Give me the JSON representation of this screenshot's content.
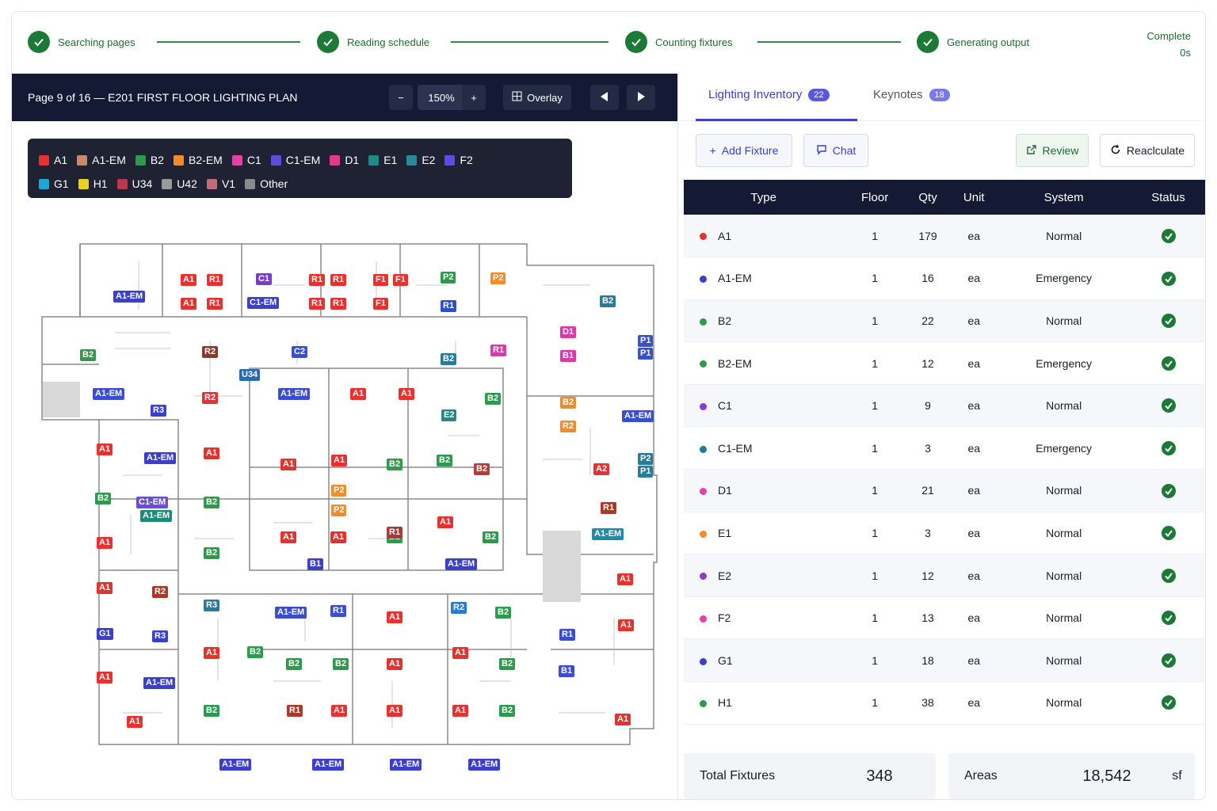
{
  "steps": [
    {
      "label": "Searching pages"
    },
    {
      "label": "Reading schedule"
    },
    {
      "label": "Counting fixtures"
    },
    {
      "label": "Generating output"
    }
  ],
  "status": {
    "label": "Complete",
    "time": "0s"
  },
  "viewer": {
    "page_title": "Page 9 of 16 — E201 FIRST FLOOR LIGHTING PLAN",
    "zoom": "150%",
    "zoom_out": "−",
    "zoom_in": "+",
    "overlay": "Overlay"
  },
  "legend": [
    [
      {
        "code": "A1",
        "color": "#e5322f"
      },
      {
        "code": "A1-EM",
        "color": "#c98a6b"
      },
      {
        "code": "B2",
        "color": "#2e9a4c"
      },
      {
        "code": "B2-EM",
        "color": "#f08c2c"
      },
      {
        "code": "C1",
        "color": "#e83ea8"
      },
      {
        "code": "C1-EM",
        "color": "#5a4ed8"
      },
      {
        "code": "D1",
        "color": "#e03a8c"
      },
      {
        "code": "E1",
        "color": "#1f8a8a"
      },
      {
        "code": "E2",
        "color": "#2a8a9a"
      },
      {
        "code": "F2",
        "color": "#5a4ee0"
      }
    ],
    [
      {
        "code": "G1",
        "color": "#1aa8d8"
      },
      {
        "code": "H1",
        "color": "#e8d21e"
      },
      {
        "code": "U34",
        "color": "#b83a4a"
      },
      {
        "code": "U42",
        "color": "#9a9a9a"
      },
      {
        "code": "V1",
        "color": "#c46a7a"
      },
      {
        "code": "Other",
        "color": "#8a8a8a"
      }
    ]
  ],
  "plan_tags": [
    {
      "t": "A1-EM",
      "c": "#3a3fd0"
    },
    {
      "t": "A1",
      "c": "#e5322f"
    },
    {
      "t": "R1",
      "c": "#e5322f"
    },
    {
      "t": "C1",
      "c": "#7a3ad0"
    },
    {
      "t": "R1",
      "c": "#e5322f"
    },
    {
      "t": "R1",
      "c": "#e5322f"
    },
    {
      "t": "F1",
      "c": "#e5322f"
    },
    {
      "t": "F1",
      "c": "#e5322f"
    },
    {
      "t": "P2",
      "c": "#2e9a4c"
    },
    {
      "t": "P2",
      "c": "#f08c2c"
    },
    {
      "t": "A1",
      "c": "#e5322f"
    },
    {
      "t": "R1",
      "c": "#e5322f"
    },
    {
      "t": "C1-EM",
      "c": "#3a3fd0"
    },
    {
      "t": "R1",
      "c": "#e5322f"
    },
    {
      "t": "R1",
      "c": "#e5322f"
    },
    {
      "t": "F1",
      "c": "#e5322f"
    },
    {
      "t": "R1",
      "c": "#2a4fd0"
    },
    {
      "t": "B2",
      "c": "#2a7a9a"
    },
    {
      "t": "B2",
      "c": "#2e9a4c"
    },
    {
      "t": "R2",
      "c": "#8a3a2a"
    },
    {
      "t": "C2",
      "c": "#3a4fd0"
    },
    {
      "t": "U34",
      "c": "#2a6ab0"
    },
    {
      "t": "B2",
      "c": "#2a7a9a"
    },
    {
      "t": "R1",
      "c": "#d83aa8"
    },
    {
      "t": "D1",
      "c": "#d83aa8"
    },
    {
      "t": "B1",
      "c": "#d83aa8"
    },
    {
      "t": "P1",
      "c": "#3a4fd0"
    },
    {
      "t": "P1",
      "c": "#3a4fd0"
    },
    {
      "t": "A1-EM",
      "c": "#3a4fd0"
    },
    {
      "t": "R3",
      "c": "#3a3fd0"
    },
    {
      "t": "R2",
      "c": "#e5322f"
    },
    {
      "t": "A1-EM",
      "c": "#3a4fd0"
    },
    {
      "t": "A1",
      "c": "#e5322f"
    },
    {
      "t": "A1",
      "c": "#e5322f"
    },
    {
      "t": "B2",
      "c": "#2e9a4c"
    },
    {
      "t": "E2",
      "c": "#1f8a8a"
    },
    {
      "t": "B2",
      "c": "#f08c2c"
    },
    {
      "t": "R2",
      "c": "#f08c2c"
    },
    {
      "t": "A1-EM",
      "c": "#3a4fd0"
    },
    {
      "t": "A1",
      "c": "#e5322f"
    },
    {
      "t": "A1-EM",
      "c": "#3a3fd0"
    },
    {
      "t": "A1",
      "c": "#e5322f"
    },
    {
      "t": "A1",
      "c": "#e5322f"
    },
    {
      "t": "B2",
      "c": "#2e9a4c"
    },
    {
      "t": "A1",
      "c": "#e5322f"
    },
    {
      "t": "B2",
      "c": "#2e9a4c"
    },
    {
      "t": "B2",
      "c": "#b83a3a"
    },
    {
      "t": "A2",
      "c": "#e5322f"
    },
    {
      "t": "P2",
      "c": "#2a7a9a"
    },
    {
      "t": "P1",
      "c": "#2a7a9a"
    },
    {
      "t": "B2",
      "c": "#2e9a4c"
    },
    {
      "t": "C1-EM",
      "c": "#6a4ed8"
    },
    {
      "t": "A1-EM",
      "c": "#1f8a7a"
    },
    {
      "t": "B2",
      "c": "#2e9a4c"
    },
    {
      "t": "P2",
      "c": "#f08c2c"
    },
    {
      "t": "P2",
      "c": "#f08c2c"
    },
    {
      "t": "R1",
      "c": "#a83a2a"
    },
    {
      "t": "A1",
      "c": "#e5322f"
    },
    {
      "t": "A1",
      "c": "#e5322f"
    },
    {
      "t": "B2",
      "c": "#2e9a4c"
    },
    {
      "t": "R1",
      "c": "#a83a3a"
    },
    {
      "t": "A1",
      "c": "#e5322f"
    },
    {
      "t": "B2",
      "c": "#2e9a4c"
    },
    {
      "t": "A1-EM",
      "c": "#1f8ab0"
    },
    {
      "t": "B2",
      "c": "#2e9a4c"
    },
    {
      "t": "B1",
      "c": "#3a3fd0"
    },
    {
      "t": "A1-EM",
      "c": "#3a3fd0"
    },
    {
      "t": "A1",
      "c": "#e5322f"
    },
    {
      "t": "A1",
      "c": "#e5322f"
    },
    {
      "t": "R2",
      "c": "#a83a2a"
    },
    {
      "t": "R3",
      "c": "#2a7a9a"
    },
    {
      "t": "A1-EM",
      "c": "#3a4fd0"
    },
    {
      "t": "R1",
      "c": "#3a4fd0"
    },
    {
      "t": "A1",
      "c": "#e5322f"
    },
    {
      "t": "R2",
      "c": "#2a7ad0"
    },
    {
      "t": "B2",
      "c": "#2e9a4c"
    },
    {
      "t": "A1",
      "c": "#e5322f"
    },
    {
      "t": "R1",
      "c": "#3a4fd0"
    },
    {
      "t": "G1",
      "c": "#3a3fd0"
    },
    {
      "t": "R3",
      "c": "#3a3fd0"
    },
    {
      "t": "A1",
      "c": "#e5322f"
    },
    {
      "t": "B2",
      "c": "#2e9a4c"
    },
    {
      "t": "B2",
      "c": "#2e9a4c"
    },
    {
      "t": "B2",
      "c": "#2e9a4c"
    },
    {
      "t": "A1",
      "c": "#e5322f"
    },
    {
      "t": "A1",
      "c": "#e5322f"
    },
    {
      "t": "B2",
      "c": "#2e9a4c"
    },
    {
      "t": "B1",
      "c": "#3a4fd0"
    },
    {
      "t": "A1",
      "c": "#e5322f"
    },
    {
      "t": "A1",
      "c": "#e5322f"
    },
    {
      "t": "A1-EM",
      "c": "#3a3fd0"
    },
    {
      "t": "B2",
      "c": "#2e9a4c"
    },
    {
      "t": "R1",
      "c": "#a83a2a"
    },
    {
      "t": "A1",
      "c": "#e5322f"
    },
    {
      "t": "A1",
      "c": "#e5322f"
    },
    {
      "t": "A1",
      "c": "#e5322f"
    },
    {
      "t": "B2",
      "c": "#2e9a4c"
    },
    {
      "t": "A1",
      "c": "#e5322f"
    },
    {
      "t": "A1",
      "c": "#e5322f"
    },
    {
      "t": "A1-EM",
      "c": "#3a3fd0"
    },
    {
      "t": "A1-EM",
      "c": "#3a3fd0"
    },
    {
      "t": "A1-EM",
      "c": "#3a3fd0"
    },
    {
      "t": "A1-EM",
      "c": "#3a3fd0"
    }
  ],
  "tabs": {
    "inventory": "Lighting Inventory",
    "inventory_count": "22",
    "keynotes": "Keynotes",
    "keynotes_count": "18"
  },
  "actions": {
    "add": "Add Fixture",
    "chat": "Chat",
    "review": "Review",
    "recalc": "Reaclculate"
  },
  "table": {
    "headers": [
      "Type",
      "Floor",
      "Qty",
      "Unit",
      "System",
      "Status"
    ],
    "rows": [
      {
        "type": "A1",
        "color": "#e5322f",
        "floor": "1",
        "qty": "179",
        "unit": "ea",
        "system": "Normal"
      },
      {
        "type": "A1-EM",
        "color": "#3a3fd0",
        "floor": "1",
        "qty": "16",
        "unit": "ea",
        "system": "Emergency"
      },
      {
        "type": "B2",
        "color": "#2e9a4c",
        "floor": "1",
        "qty": "22",
        "unit": "ea",
        "system": "Normal"
      },
      {
        "type": "B2-EM",
        "color": "#2e9a4c",
        "floor": "1",
        "qty": "12",
        "unit": "ea",
        "system": "Emergency"
      },
      {
        "type": "C1",
        "color": "#8a3ad8",
        "floor": "1",
        "qty": "9",
        "unit": "ea",
        "system": "Normal"
      },
      {
        "type": "C1-EM",
        "color": "#1f7a9a",
        "floor": "1",
        "qty": "3",
        "unit": "ea",
        "system": "Emergency"
      },
      {
        "type": "D1",
        "color": "#e83ea8",
        "floor": "1",
        "qty": "21",
        "unit": "ea",
        "system": "Normal"
      },
      {
        "type": "E1",
        "color": "#f08c2c",
        "floor": "1",
        "qty": "3",
        "unit": "ea",
        "system": "Normal"
      },
      {
        "type": "E2",
        "color": "#8a3ad8",
        "floor": "1",
        "qty": "12",
        "unit": "ea",
        "system": "Normal"
      },
      {
        "type": "F2",
        "color": "#e83ea8",
        "floor": "1",
        "qty": "13",
        "unit": "ea",
        "system": "Normal"
      },
      {
        "type": "G1",
        "color": "#3a3fd0",
        "floor": "1",
        "qty": "18",
        "unit": "ea",
        "system": "Normal"
      },
      {
        "type": "H1",
        "color": "#2e9a4c",
        "floor": "1",
        "qty": "38",
        "unit": "ea",
        "system": "Normal"
      }
    ]
  },
  "summary": {
    "total_label": "Total Fixtures",
    "total_value": "348",
    "areas_label": "Areas",
    "areas_value": "18,542",
    "areas_unit": "sf"
  }
}
